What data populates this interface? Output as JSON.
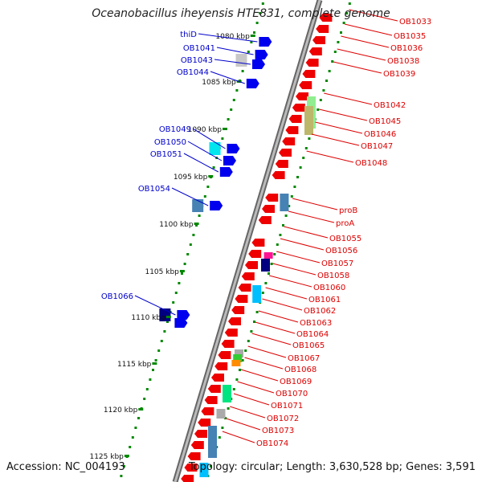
{
  "title": "Oceanobacillus iheyensis HTE831, complete genome",
  "footer": {
    "accession": "Accession: NC_004193",
    "summary": "Topology: circular; Length: 3,630,528 bp; Genes: 3,591"
  },
  "colors": {
    "left_label": "#0000cc",
    "right_label": "#dd0000",
    "forward_gene": "#0000ee",
    "reverse_gene": "#ee0000",
    "tick": "#008800",
    "backbone": "#888888"
  },
  "kbp_ticks": [
    "1080 kbp",
    "1085 kbp",
    "1090 kbp",
    "1095 kbp",
    "1100 kbp",
    "1105 kbp",
    "1110 kbp",
    "1115 kbp",
    "1120 kbp",
    "1125 kbp"
  ],
  "left_labels": [
    "thiD",
    "OB1041",
    "OB1043",
    "OB1044",
    "OB1049",
    "OB1050",
    "OB1051",
    "OB1054",
    "OB1066"
  ],
  "right_labels": [
    "OB1033",
    "OB1035",
    "OB1036",
    "OB1038",
    "OB1039",
    "OB1042",
    "OB1045",
    "OB1046",
    "OB1047",
    "OB1048",
    "proB",
    "proA",
    "OB1055",
    "OB1056",
    "OB1057",
    "OB1058",
    "OB1060",
    "OB1061",
    "OB1062",
    "OB1063",
    "OB1064",
    "OB1065",
    "OB1067",
    "OB1068",
    "OB1069",
    "OB1070",
    "OB1071",
    "OB1072",
    "OB1073",
    "OB1074"
  ]
}
